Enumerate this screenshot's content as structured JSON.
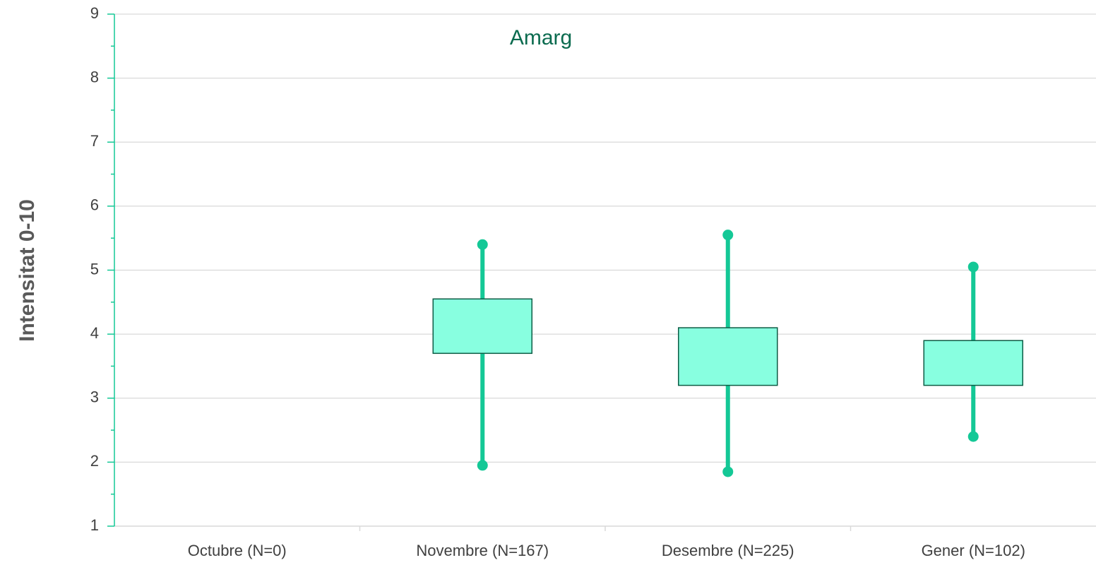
{
  "chart_data": {
    "type": "box",
    "title": "Amarg",
    "y_label": "Intensitat 0-10",
    "categories": [
      "Octubre (N=0)",
      "Novembre (N=167)",
      "Desembre (N=225)",
      "Gener (N=102)"
    ],
    "min": [
      null,
      1.95,
      1.85,
      2.4
    ],
    "q1": [
      null,
      3.7,
      3.2,
      3.2
    ],
    "q3": [
      null,
      4.55,
      4.1,
      3.9
    ],
    "max": [
      null,
      5.4,
      5.55,
      5.05
    ],
    "box_color": "#88ffe0",
    "box_edge_color": "#0d5c45",
    "whisker_color": "#14c896",
    "title_color": "#0b6b4f",
    "ylim": [
      1,
      9
    ],
    "yticks": [
      1,
      2,
      3,
      4,
      5,
      6,
      7,
      8,
      9
    ],
    "yminorticks": [
      1.5,
      2.5,
      3.5,
      4.5,
      5.5,
      6.5,
      7.5,
      8.5
    ],
    "grid": true
  }
}
